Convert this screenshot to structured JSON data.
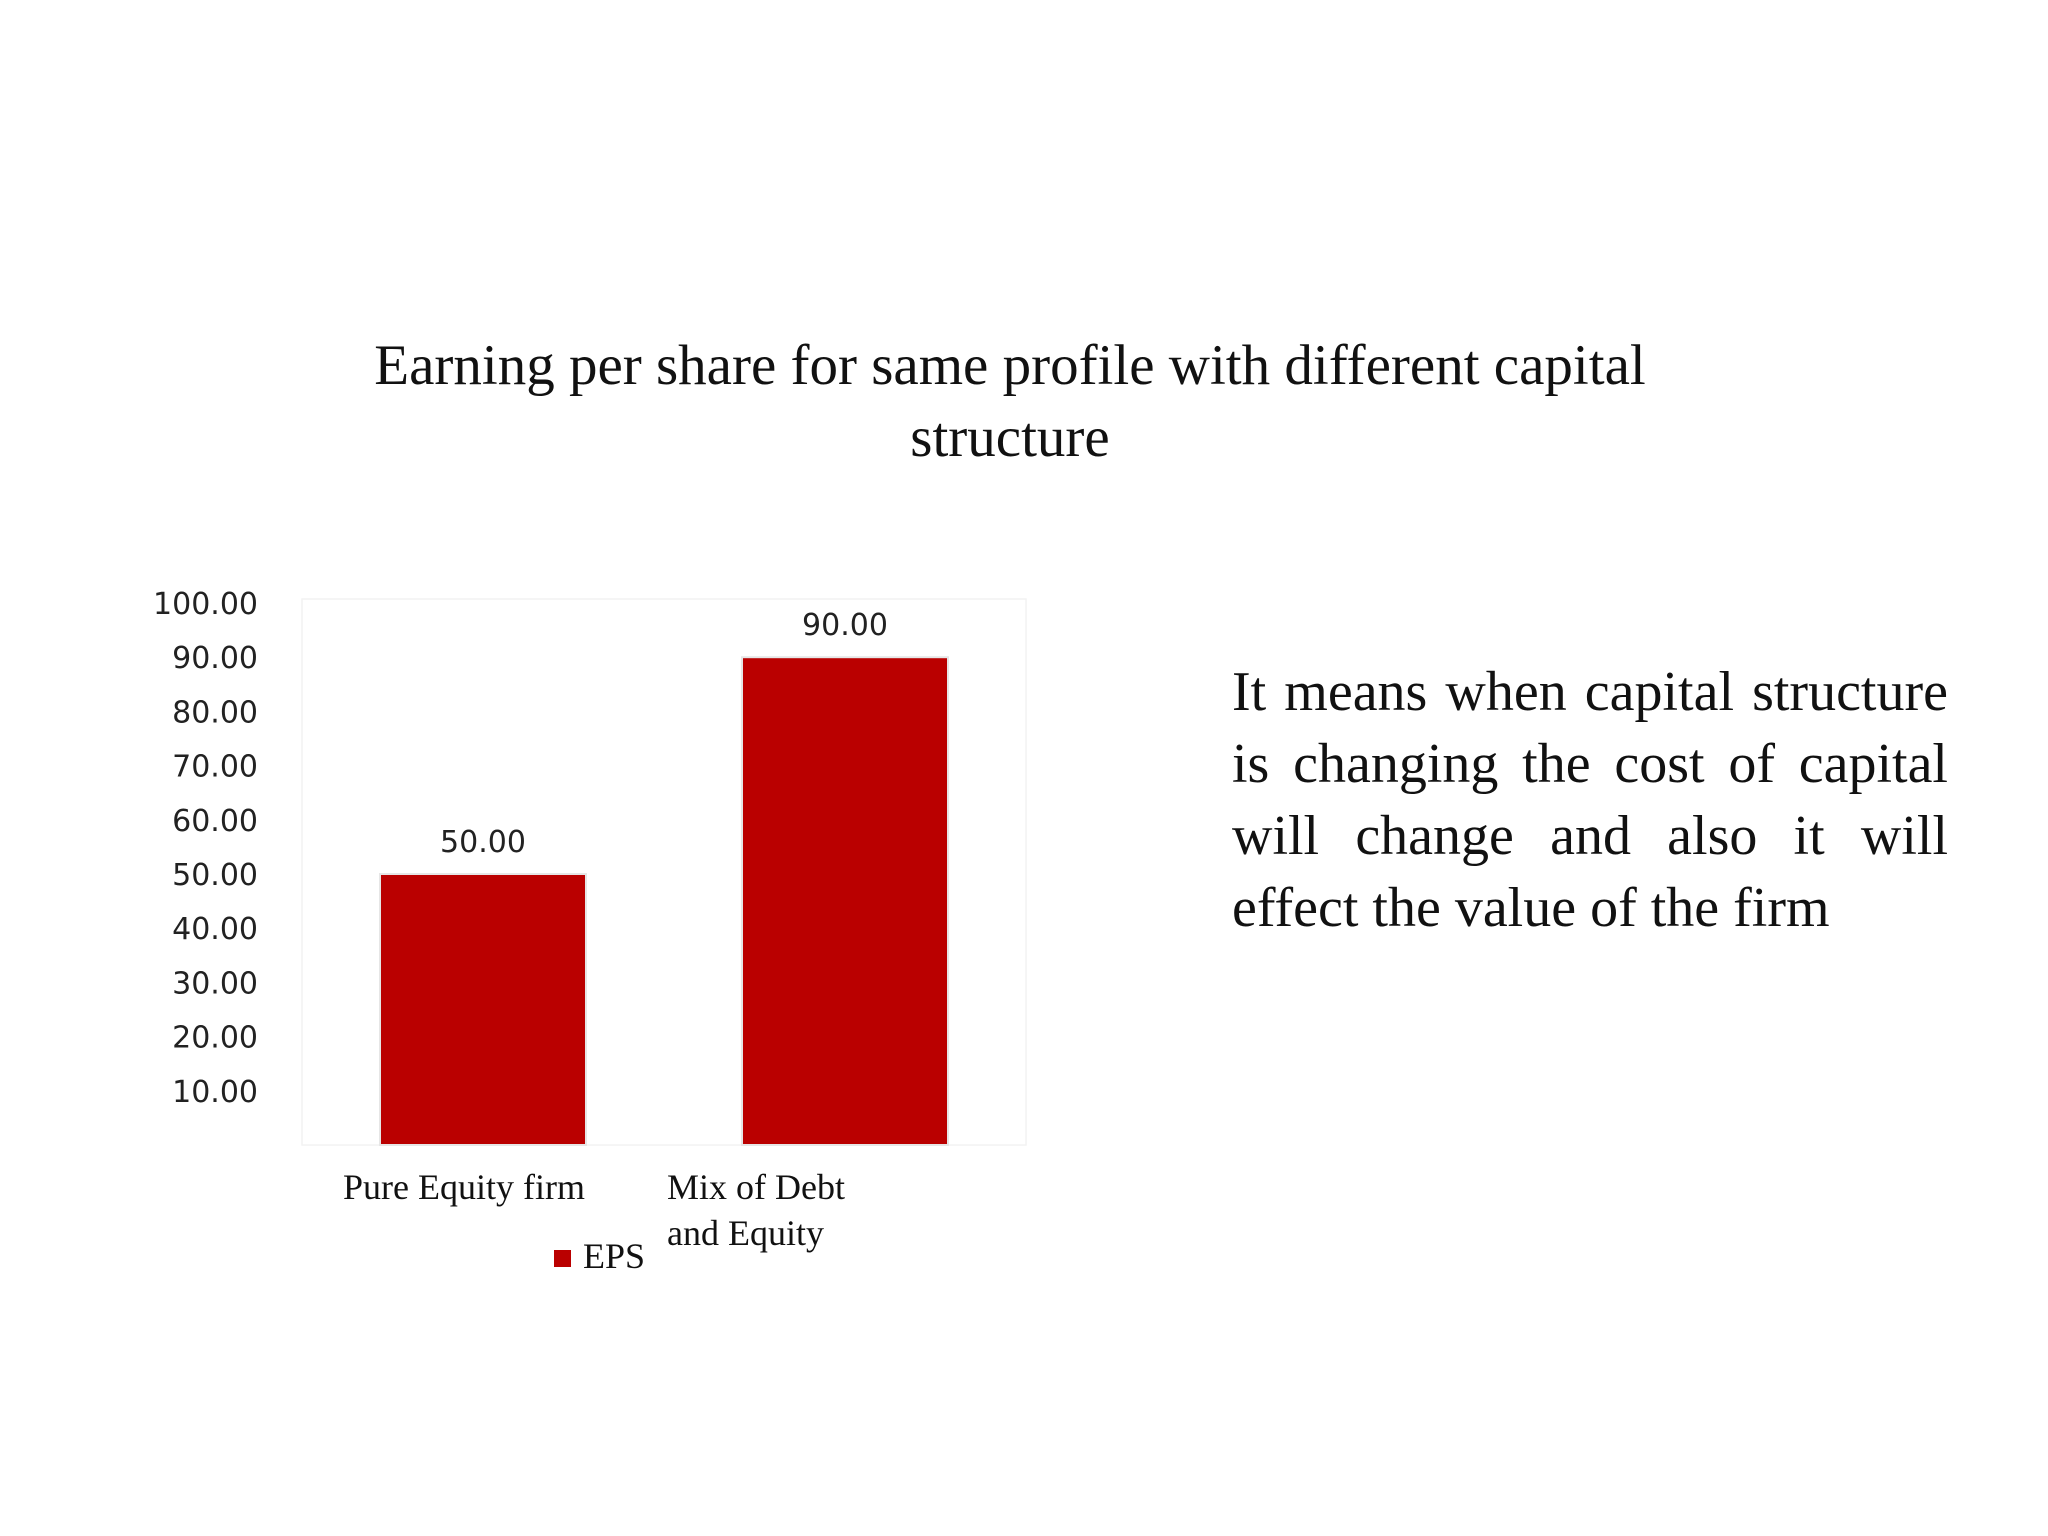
{
  "slide": {
    "title": "Earning per share for same profile with different capital structure",
    "body_text": "It means when capital structure is changing the cost of capital will change and also it will effect the value of the firm"
  },
  "colors": {
    "bar": "#BA0000",
    "text": "#111111",
    "background": "#ffffff"
  },
  "chart_data": {
    "type": "bar",
    "title": "Earning per share for same profile with different capital structure",
    "categories": [
      "Pure Equity firm",
      "Mix of Debt and Equity"
    ],
    "series": [
      {
        "name": "EPS",
        "values": [
          50.0,
          90.0
        ]
      }
    ],
    "data_labels": [
      "50.00",
      "90.00"
    ],
    "y_ticks": [
      "10.00",
      "20.00",
      "30.00",
      "40.00",
      "50.00",
      "60.00",
      "70.00",
      "80.00",
      "90.00",
      "100.00"
    ],
    "ylim": [
      0,
      100
    ],
    "grid": false,
    "legend": {
      "position": "bottom",
      "entries": [
        "EPS"
      ]
    }
  }
}
